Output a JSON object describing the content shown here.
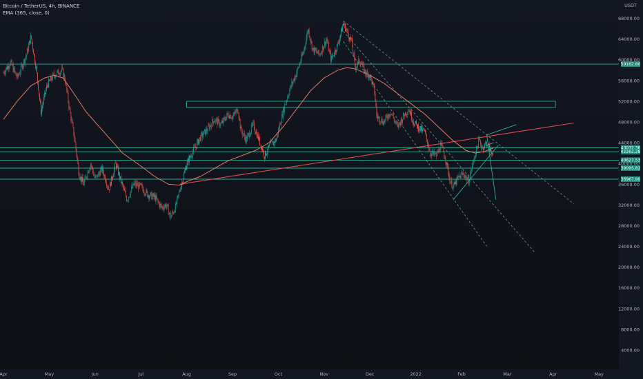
{
  "header": {
    "symbol": "Bitcoin / TetherUS, 4h, BINANCE",
    "indicator": "EMA (365, close, 0)"
  },
  "colors": {
    "background": "#131722",
    "up_candle": "#26a69a",
    "down_candle": "#ef5350",
    "ema": "#e8796a",
    "level_line": "#21b39a",
    "trendline": "#e14b52",
    "dashed_channel": "#6e8c8a",
    "price_tag": "#1d8a7c"
  },
  "chart_data": {
    "type": "candlestick",
    "currency_label": "USDT",
    "y_ticks": [
      68000,
      64000,
      60000,
      56000,
      52000,
      48000,
      44000,
      40000,
      36000,
      32000,
      28000,
      24000,
      20000,
      16000,
      12000,
      8000,
      4000
    ],
    "y_tick_labels": [
      "68000.00",
      "64000.00",
      "60000.00",
      "56000.00",
      "52000.00",
      "48000.00",
      "44000.00",
      "40000.00",
      "36000.00",
      "32000.00",
      "28000.00",
      "24000.00",
      "20000.00",
      "16000.00",
      "12000.00",
      "8000.00",
      "4000.00"
    ],
    "x_tick_labels": [
      "Apr",
      "May",
      "Jun",
      "Jul",
      "Aug",
      "Sep",
      "Oct",
      "Nov",
      "Dec",
      "2022",
      "Feb",
      "Mar",
      "Apr",
      "May"
    ],
    "x_tick_months": [
      0,
      1,
      2,
      3,
      4,
      5,
      6,
      7,
      8,
      9,
      10,
      11,
      12,
      13
    ],
    "price_path": [
      [
        0.0,
        57500
      ],
      [
        0.15,
        59500
      ],
      [
        0.3,
        56500
      ],
      [
        0.5,
        61000
      ],
      [
        0.6,
        64500
      ],
      [
        0.72,
        58000
      ],
      [
        0.82,
        50000
      ],
      [
        0.95,
        55000
      ],
      [
        1.1,
        57000
      ],
      [
        1.28,
        58000
      ],
      [
        1.35,
        56000
      ],
      [
        1.45,
        50000
      ],
      [
        1.55,
        45000
      ],
      [
        1.65,
        38000
      ],
      [
        1.75,
        36000
      ],
      [
        1.9,
        40000
      ],
      [
        2.0,
        37000
      ],
      [
        2.15,
        39000
      ],
      [
        2.3,
        35000
      ],
      [
        2.45,
        40000
      ],
      [
        2.55,
        37000
      ],
      [
        2.7,
        33000
      ],
      [
        2.85,
        36000
      ],
      [
        3.0,
        35500
      ],
      [
        3.15,
        34000
      ],
      [
        3.3,
        33500
      ],
      [
        3.45,
        31500
      ],
      [
        3.55,
        32000
      ],
      [
        3.65,
        29700
      ],
      [
        3.75,
        31500
      ],
      [
        3.85,
        35000
      ],
      [
        4.0,
        40000
      ],
      [
        4.15,
        42500
      ],
      [
        4.3,
        45000
      ],
      [
        4.45,
        46500
      ],
      [
        4.6,
        48500
      ],
      [
        4.75,
        47500
      ],
      [
        4.9,
        49500
      ],
      [
        5.0,
        49000
      ],
      [
        5.12,
        50500
      ],
      [
        5.18,
        46500
      ],
      [
        5.3,
        44500
      ],
      [
        5.45,
        47500
      ],
      [
        5.6,
        44000
      ],
      [
        5.7,
        41500
      ],
      [
        5.82,
        43500
      ],
      [
        5.95,
        44500
      ],
      [
        6.05,
        48000
      ],
      [
        6.15,
        51500
      ],
      [
        6.28,
        55000
      ],
      [
        6.4,
        57500
      ],
      [
        6.55,
        61500
      ],
      [
        6.65,
        66000
      ],
      [
        6.75,
        62000
      ],
      [
        6.9,
        61000
      ],
      [
        7.05,
        64000
      ],
      [
        7.15,
        60000
      ],
      [
        7.3,
        63000
      ],
      [
        7.42,
        67000
      ],
      [
        7.5,
        65500
      ],
      [
        7.6,
        63500
      ],
      [
        7.68,
        58500
      ],
      [
        7.78,
        60000
      ],
      [
        7.9,
        57500
      ],
      [
        8.0,
        57000
      ],
      [
        8.1,
        54000
      ],
      [
        8.15,
        49000
      ],
      [
        8.3,
        48000
      ],
      [
        8.45,
        50000
      ],
      [
        8.6,
        47000
      ],
      [
        8.75,
        49500
      ],
      [
        8.85,
        50500
      ],
      [
        8.95,
        48000
      ],
      [
        9.05,
        47000
      ],
      [
        9.2,
        46000
      ],
      [
        9.32,
        42000
      ],
      [
        9.45,
        41500
      ],
      [
        9.55,
        43500
      ],
      [
        9.65,
        41000
      ],
      [
        9.75,
        36500
      ],
      [
        9.82,
        35500
      ],
      [
        9.95,
        37500
      ],
      [
        10.05,
        38000
      ],
      [
        10.15,
        36500
      ],
      [
        10.3,
        42000
      ],
      [
        10.38,
        44500
      ],
      [
        10.45,
        43000
      ],
      [
        10.55,
        44000
      ],
      [
        10.65,
        42000
      ],
      [
        10.7,
        42500
      ]
    ],
    "ema_path": [
      [
        0.0,
        48500
      ],
      [
        0.3,
        52000
      ],
      [
        0.6,
        55000
      ],
      [
        0.9,
        56500
      ],
      [
        1.1,
        57000
      ],
      [
        1.3,
        56500
      ],
      [
        1.5,
        54000
      ],
      [
        1.8,
        50000
      ],
      [
        2.2,
        46000
      ],
      [
        2.6,
        42000
      ],
      [
        3.0,
        39500
      ],
      [
        3.3,
        37500
      ],
      [
        3.6,
        36000
      ],
      [
        3.85,
        35800
      ],
      [
        4.0,
        36500
      ],
      [
        4.3,
        37500
      ],
      [
        4.6,
        39000
      ],
      [
        4.9,
        40500
      ],
      [
        5.2,
        41500
      ],
      [
        5.5,
        42500
      ],
      [
        5.8,
        44000
      ],
      [
        6.1,
        47000
      ],
      [
        6.4,
        50500
      ],
      [
        6.7,
        54000
      ],
      [
        7.0,
        56500
      ],
      [
        7.3,
        58000
      ],
      [
        7.5,
        58500
      ],
      [
        7.7,
        58200
      ],
      [
        8.0,
        57000
      ],
      [
        8.3,
        55500
      ],
      [
        8.6,
        53500
      ],
      [
        8.9,
        51500
      ],
      [
        9.2,
        49500
      ],
      [
        9.5,
        47000
      ],
      [
        9.8,
        44500
      ],
      [
        10.1,
        42500
      ],
      [
        10.3,
        42000
      ],
      [
        10.5,
        42300
      ],
      [
        10.7,
        43000
      ]
    ],
    "ema_label": "EMA (365, close, 0)",
    "horizontal_levels": [
      {
        "value": 59162.8,
        "label": "59162.80"
      },
      {
        "value": 43032.36,
        "label": "43032.36"
      },
      {
        "value": 42262.28,
        "label": "42262.28"
      },
      {
        "value": 40627.53,
        "label": "40627.53"
      },
      {
        "value": 39095.82,
        "label": "39095.82"
      },
      {
        "value": 36967.9,
        "label": "36967.90"
      }
    ],
    "resistance_box": {
      "x_start": 4.0,
      "x_end": 12.05,
      "y_top": 52000,
      "y_bottom": 50800
    },
    "ascending_trendline": {
      "start": [
        3.85,
        36000
      ],
      "end": [
        12.45,
        47800
      ]
    },
    "dashed_channel_lines": [
      {
        "start": [
          7.42,
          67500
        ],
        "end": [
          12.45,
          32200
        ]
      },
      {
        "start": [
          7.42,
          65500
        ],
        "end": [
          11.6,
          22800
        ]
      },
      {
        "start": [
          7.42,
          63500
        ],
        "end": [
          10.55,
          24000
        ]
      }
    ],
    "pattern_lines": [
      {
        "start": [
          9.82,
          33000
        ],
        "end": [
          10.8,
          43500
        ]
      },
      {
        "start": [
          10.55,
          45500
        ],
        "end": [
          11.2,
          47500
        ]
      },
      {
        "start": [
          10.55,
          45500
        ],
        "end": [
          10.75,
          33000
        ]
      },
      {
        "start": [
          10.55,
          43500
        ],
        "end": [
          10.7,
          44000
        ]
      }
    ]
  }
}
